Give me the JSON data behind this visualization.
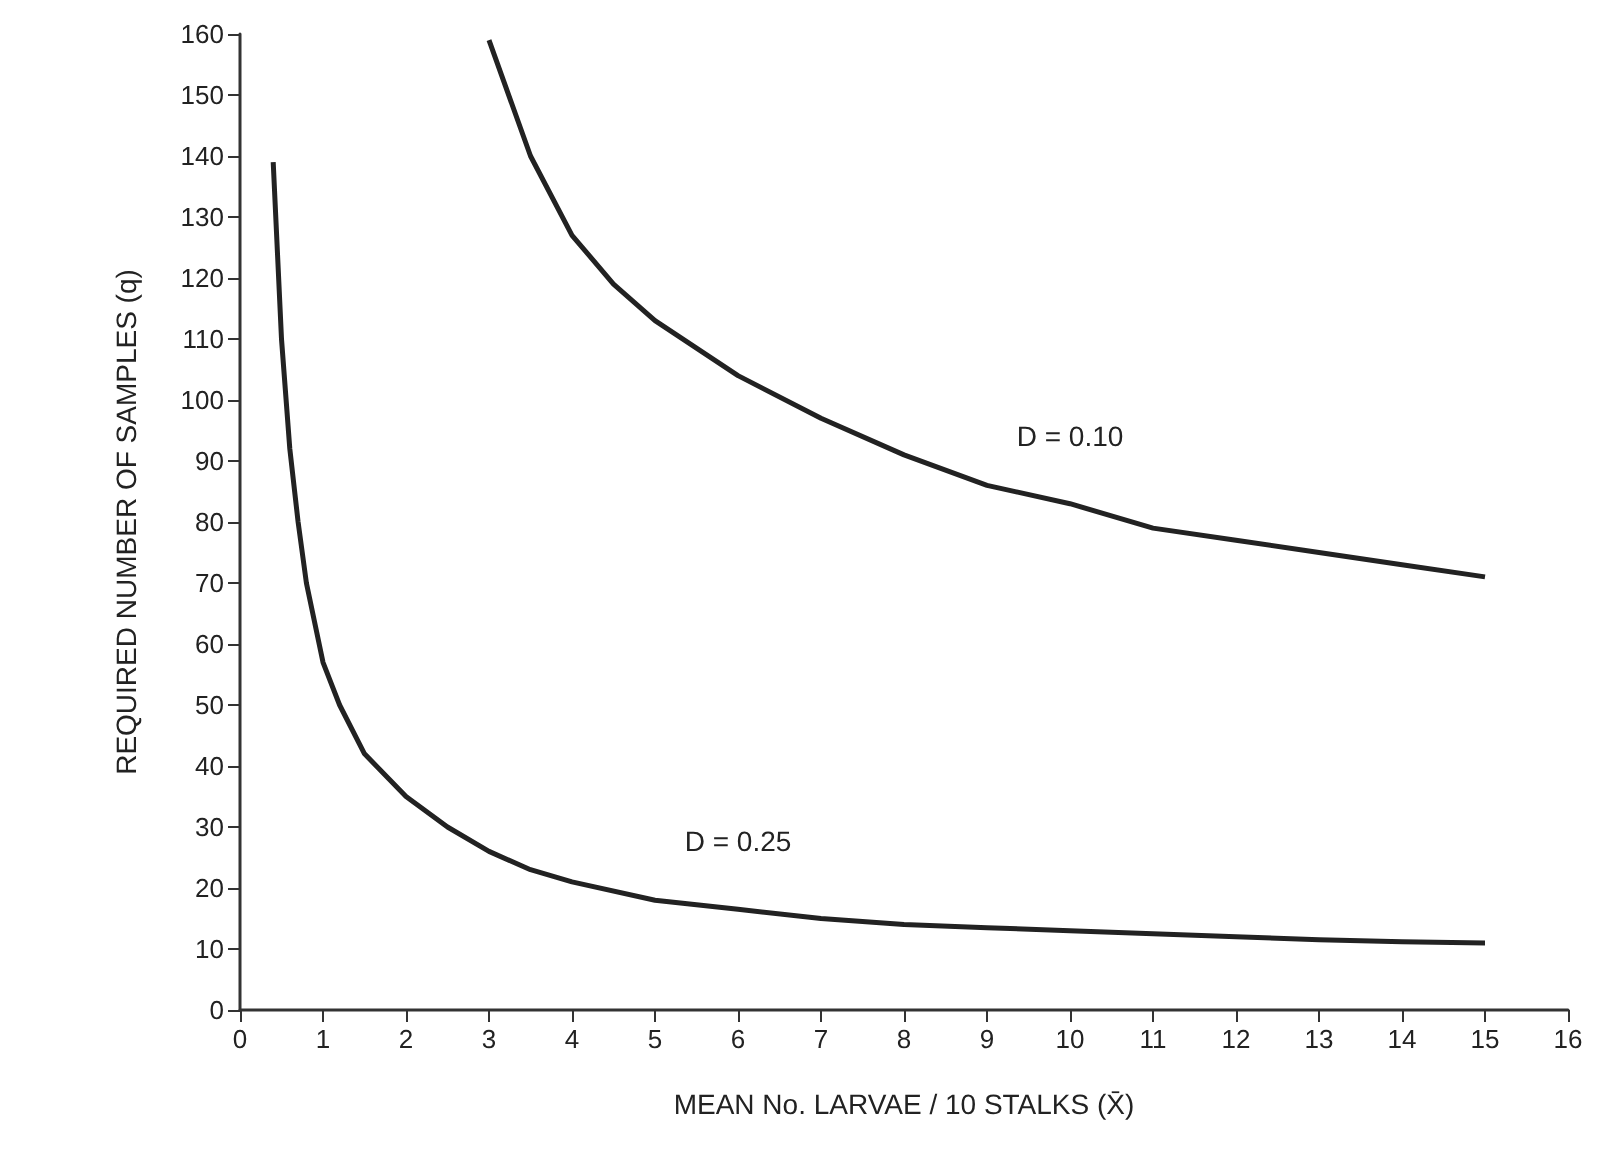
{
  "chart_data": {
    "type": "line",
    "xlabel": "MEAN No. LARVAE / 10 STALKS (X̄)",
    "ylabel": "REQUIRED NUMBER OF SAMPLES (q)",
    "xlim": [
      0,
      16
    ],
    "xticks": [
      0,
      1,
      2,
      3,
      4,
      5,
      6,
      7,
      8,
      9,
      10,
      11,
      12,
      13,
      14,
      15,
      16
    ],
    "ylim": [
      0,
      160
    ],
    "yticks": [
      0,
      10,
      20,
      30,
      40,
      50,
      60,
      70,
      80,
      90,
      100,
      110,
      120,
      130,
      140,
      150,
      160
    ],
    "grid": false,
    "marker": "none",
    "line_style": "solid",
    "series": [
      {
        "name": "D = 0.25",
        "color": "#222222",
        "x": [
          0.4,
          0.5,
          0.6,
          0.7,
          0.8,
          1,
          1.2,
          1.5,
          2,
          2.5,
          3,
          3.5,
          4,
          5,
          6,
          7,
          8,
          9,
          10,
          11,
          12,
          13,
          14,
          15
        ],
        "values": [
          139,
          110,
          92,
          80,
          70,
          57,
          50,
          42,
          35,
          30,
          26,
          23,
          21,
          18,
          16.5,
          15,
          14,
          13.5,
          13,
          12.5,
          12,
          11.5,
          11.2,
          11
        ]
      },
      {
        "name": "D = 0.10",
        "color": "#222222",
        "x": [
          3,
          3.5,
          4,
          4.5,
          5,
          6,
          7,
          8,
          9,
          10,
          11,
          12,
          13,
          14,
          15
        ],
        "values": [
          159,
          140,
          127,
          119,
          113,
          104,
          97,
          91,
          86,
          83,
          79,
          77,
          75,
          73,
          71
        ]
      }
    ]
  }
}
